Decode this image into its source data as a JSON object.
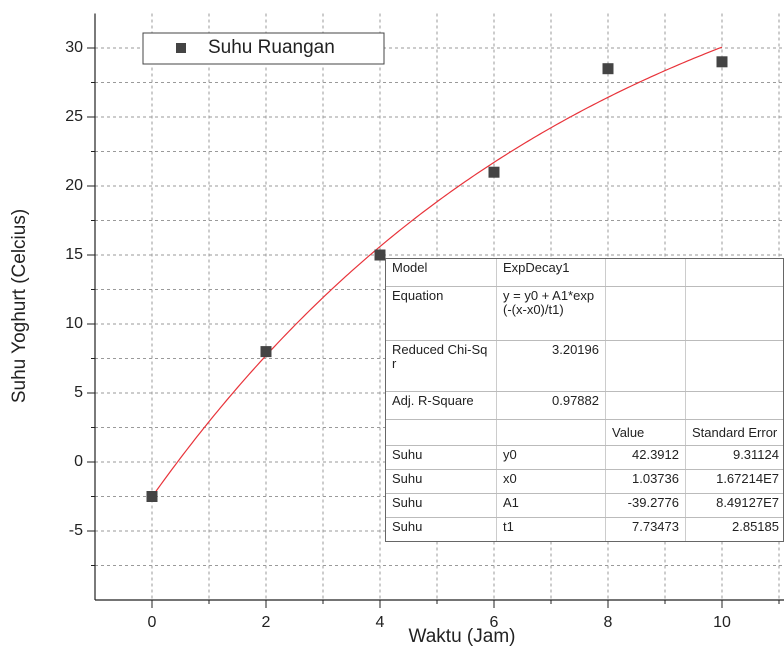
{
  "chart_data": {
    "type": "scatter",
    "x_label": "Waktu (Jam)",
    "y_label": "Suhu Yoghurt (Celcius)",
    "x": [
      0,
      2,
      4,
      6,
      8,
      10
    ],
    "series": [
      {
        "name": "Suhu Ruangan",
        "color": "#444444",
        "values": [
          -2.5,
          8,
          15,
          21,
          28.5,
          29
        ]
      }
    ],
    "xlim": [
      -1,
      11.1
    ],
    "ylim": [
      -10,
      32.5
    ],
    "xticks": [
      0,
      2,
      4,
      6,
      8,
      10
    ],
    "yticks": [
      -5,
      0,
      5,
      10,
      15,
      20,
      25,
      30
    ],
    "xminorticks": [
      1,
      3,
      5,
      7,
      9,
      11
    ],
    "yminorticks": [
      -7.5,
      -2.5,
      2.5,
      7.5,
      12.5,
      17.5,
      22.5,
      27.5
    ],
    "grid": true,
    "legend": "top-left",
    "fit_color": "#e8333a",
    "fit_table": {
      "rows": [
        [
          "Model",
          "ExpDecay1",
          null,
          null
        ],
        [
          "Equation",
          "y = y0 + A1*exp(-(x-x0)/t1)",
          null,
          null
        ],
        [
          "Reduced Chi-Sqr",
          "3.20196",
          null,
          null
        ],
        [
          "Adj. R-Square",
          "0.97882",
          null,
          null
        ],
        [
          null,
          null,
          "Value",
          "Standard Error"
        ],
        [
          "Suhu",
          "y0",
          "42.3912",
          "9.31124"
        ],
        [
          "Suhu",
          "x0",
          "1.03736",
          "1.67214E7"
        ],
        [
          "Suhu",
          "A1",
          "-39.2776",
          "8.49127E7"
        ],
        [
          "Suhu",
          "t1",
          "7.73473",
          "2.85185"
        ]
      ]
    }
  }
}
